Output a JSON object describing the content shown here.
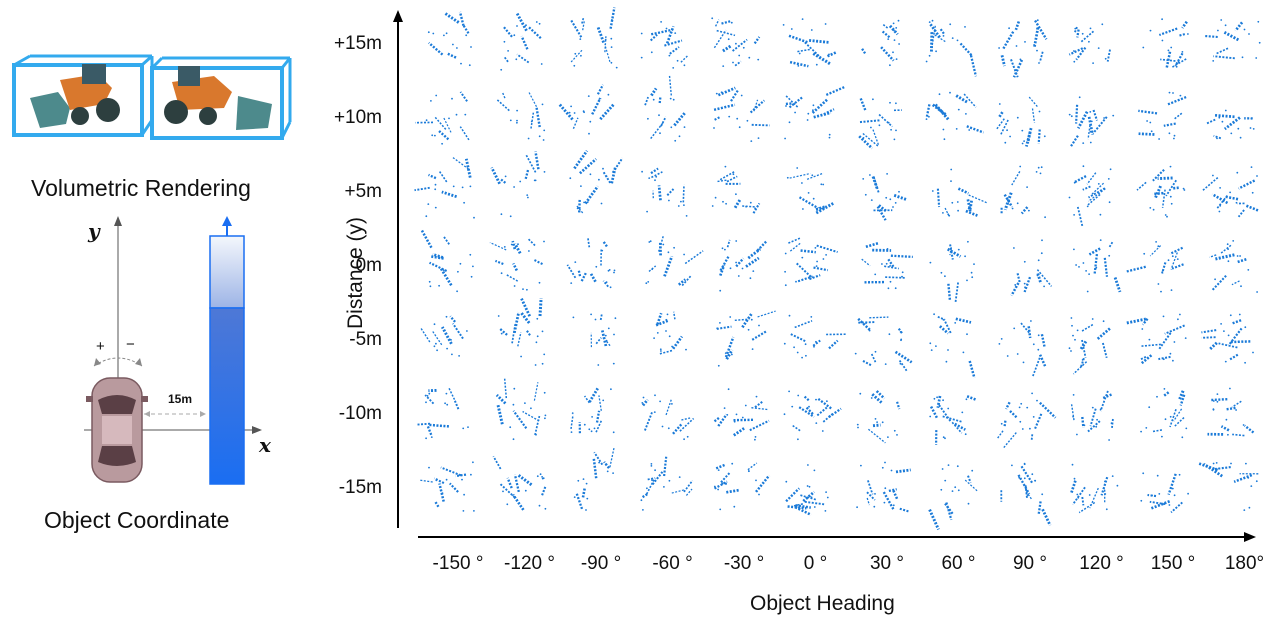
{
  "left_panel": {
    "volumetric_caption": "Volumetric Rendering",
    "coordinate_caption": "Object Coordinate",
    "axis_y_label": "y",
    "axis_x_label": "x",
    "rotation_plus": "+",
    "rotation_minus": "−",
    "distance_label": "15m",
    "colors": {
      "box_edge": "#33aaee",
      "bar_top": "#e8eef8",
      "bar_bottom": "#1a6ef2",
      "car_body": "#b99a9e"
    }
  },
  "grid": {
    "y_axis_title": "Distance (y)",
    "x_axis_title": "Object Heading",
    "distance_ticks": [
      "+15m",
      "+10m",
      "+5m",
      "0m",
      "-5m",
      "-10m",
      "-15m"
    ],
    "heading_ticks": [
      "-150 °",
      "-120 °",
      "-90 °",
      "-60 °",
      "-30 °",
      "0 °",
      "30 °",
      "60 °",
      "90 °",
      "120 °",
      "150 °",
      "180°"
    ],
    "point_color": "#1a7ad8"
  }
}
